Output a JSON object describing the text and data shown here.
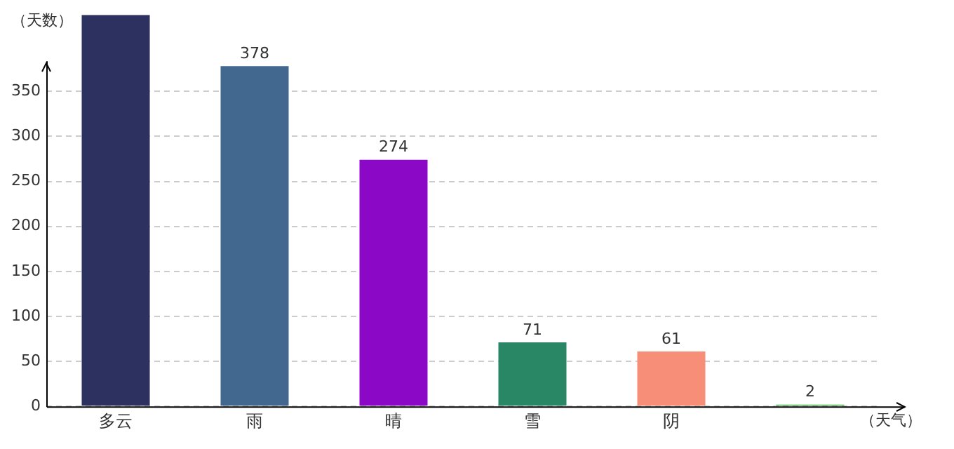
{
  "chart_data": {
    "type": "bar",
    "xlabel": "（天气）",
    "ylabel": "（天数）",
    "categories": [
      "多云",
      "雨",
      "晴",
      "雪",
      "阴",
      null
    ],
    "values": [
      435,
      378,
      274,
      71,
      61,
      2
    ],
    "colors": [
      "#2d3160",
      "#436890",
      "#8b08c6",
      "#2a8766",
      "#f78e78",
      "#4caf50"
    ],
    "value_labels": [
      null,
      "378",
      "274",
      "71",
      "61",
      "2"
    ],
    "ylim": [
      0,
      435
    ],
    "yticks": [
      0,
      50,
      100,
      150,
      200,
      250,
      300,
      350
    ],
    "grid": "y",
    "legend": false
  }
}
